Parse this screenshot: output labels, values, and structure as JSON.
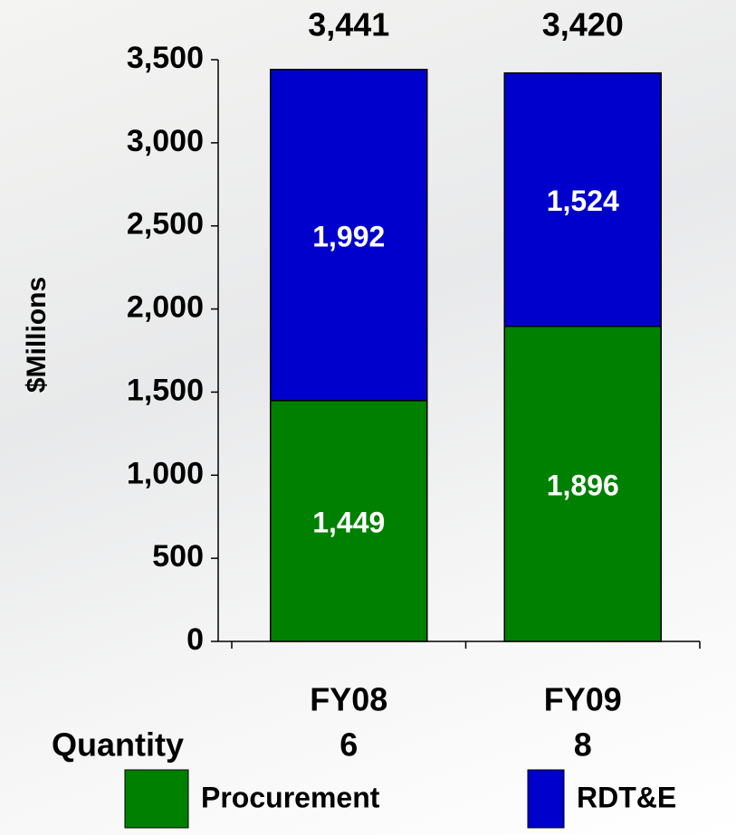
{
  "chart_data": {
    "type": "stacked_bar",
    "y_label": "$Millions",
    "categories": [
      "FY08",
      "FY09"
    ],
    "series": [
      {
        "name": "Procurement",
        "color": "#008000",
        "values": [
          1449,
          1896
        ],
        "value_labels": [
          "1,449",
          "1,896"
        ]
      },
      {
        "name": "RDT&E",
        "color": "#0000cc",
        "values": [
          1992,
          1524
        ],
        "value_labels": [
          "1,992",
          "1,524"
        ]
      }
    ],
    "totals": [
      3441,
      3420
    ],
    "total_labels": [
      "3,441",
      "3,420"
    ],
    "quantity_label": "Quantity",
    "quantity": [
      6,
      8
    ],
    "ylim": [
      0,
      3500
    ],
    "yticks": [
      0,
      500,
      {
        "value": 1000,
        "label": "1,000"
      },
      {
        "value": 1500,
        "label": "1,500"
      },
      {
        "value": 2000,
        "label": "2,000"
      },
      {
        "value": 2500,
        "label": "2,500"
      },
      {
        "value": 3000,
        "label": "3,000"
      },
      {
        "value": 3500,
        "label": "3,500"
      }
    ]
  }
}
